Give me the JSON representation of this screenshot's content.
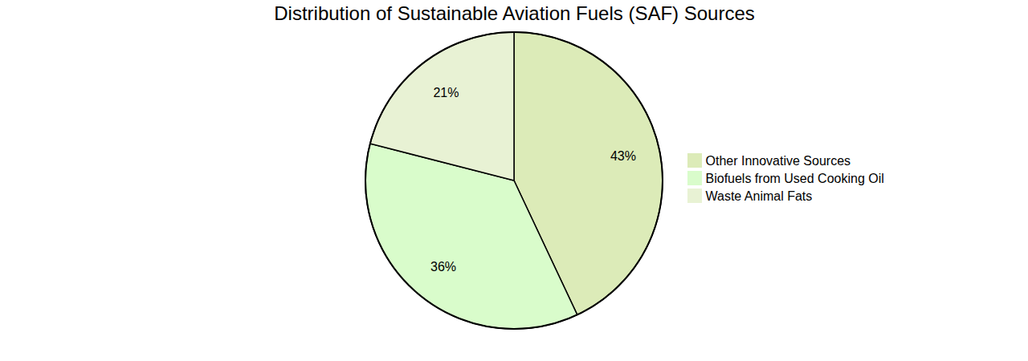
{
  "chart_data": {
    "type": "pie",
    "title": "Distribution of Sustainable Aviation Fuels (SAF) Sources",
    "categories": [
      "Other Innovative Sources",
      "Biofuels from Used Cooking Oil",
      "Waste Animal Fats"
    ],
    "values": [
      43,
      36,
      21
    ],
    "value_labels": [
      "43%",
      "36%",
      "21%"
    ],
    "colors": [
      "#dcebb8",
      "#d9fccb",
      "#e8f2d4"
    ],
    "data_labels": true,
    "legend": "right"
  }
}
